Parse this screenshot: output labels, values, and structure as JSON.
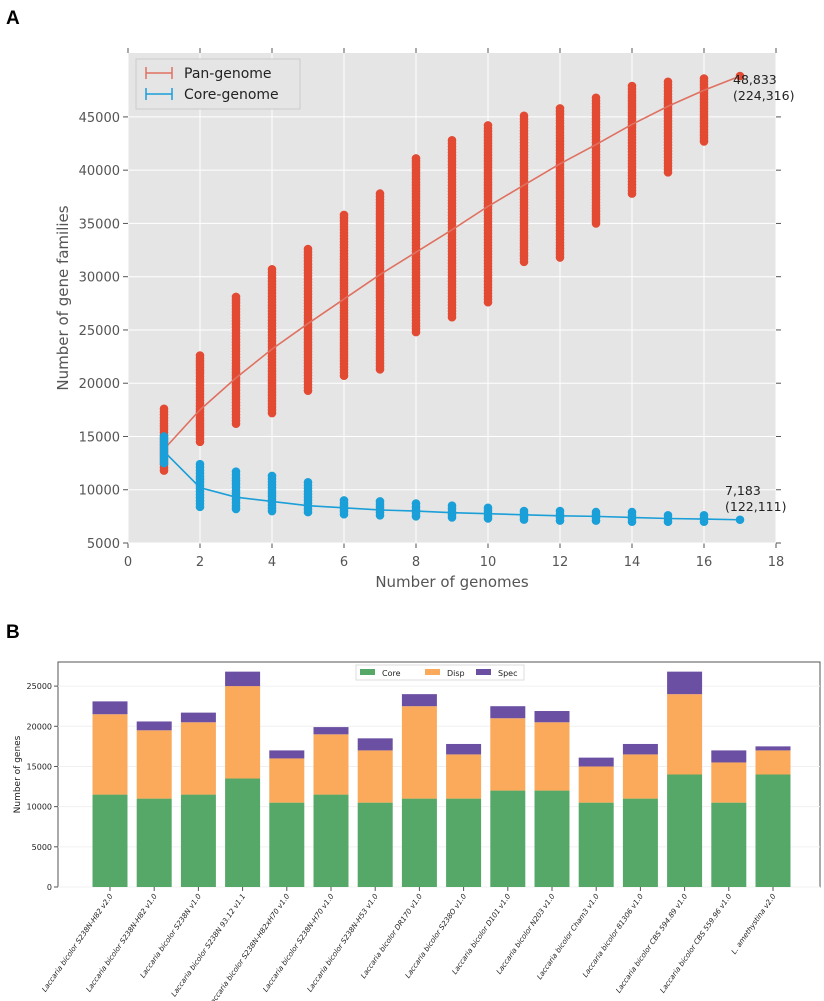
{
  "panels": {
    "a": "A",
    "b": "B"
  },
  "chart_data": [
    {
      "type": "scatter",
      "xlabel": "Number of genomes",
      "ylabel": "Number of gene families",
      "xlim": [
        0,
        18
      ],
      "ylim": [
        5000,
        51000
      ],
      "xticks": [
        0,
        2,
        4,
        6,
        8,
        10,
        12,
        14,
        16,
        18
      ],
      "yticks": [
        5000,
        10000,
        15000,
        20000,
        25000,
        30000,
        35000,
        40000,
        45000
      ],
      "grid": true,
      "legend_position": "top-left",
      "colors": {
        "pan": "#e24a33",
        "pan_line": "#e07060",
        "core": "#1a9fd8",
        "background": "#e5e5e5"
      },
      "series": [
        {
          "name": "Pan-genome",
          "x": [
            1,
            2,
            3,
            4,
            5,
            6,
            7,
            8,
            9,
            10,
            11,
            12,
            13,
            14,
            15,
            16,
            17
          ],
          "mean": [
            13800,
            17500,
            20500,
            23200,
            25600,
            27900,
            30200,
            32300,
            34400,
            36600,
            38600,
            40600,
            42400,
            44300,
            46000,
            47500,
            48833
          ],
          "scatter_min": [
            11800,
            14500,
            16200,
            17200,
            19300,
            20700,
            21300,
            24800,
            26200,
            27600,
            31400,
            31800,
            35000,
            37800,
            39800,
            42700,
            48833
          ],
          "scatter_max": [
            17600,
            22600,
            28100,
            30700,
            32600,
            35800,
            37800,
            41100,
            42800,
            44200,
            45100,
            45800,
            46800,
            47900,
            48300,
            48600,
            48833
          ],
          "annotation": [
            "48,833",
            "(224,316)"
          ]
        },
        {
          "name": "Core-genome",
          "x": [
            1,
            2,
            3,
            4,
            5,
            6,
            7,
            8,
            9,
            10,
            11,
            12,
            13,
            14,
            15,
            16,
            17
          ],
          "mean": [
            13600,
            10200,
            9300,
            8900,
            8500,
            8300,
            8100,
            8000,
            7850,
            7750,
            7650,
            7550,
            7500,
            7400,
            7300,
            7250,
            7183
          ],
          "scatter_min": [
            12500,
            8400,
            8200,
            8000,
            7900,
            7700,
            7600,
            7500,
            7400,
            7300,
            7200,
            7100,
            7100,
            7000,
            7000,
            7000,
            7183
          ],
          "scatter_max": [
            15000,
            12400,
            11700,
            11300,
            10700,
            9000,
            8900,
            8700,
            8500,
            8300,
            8000,
            8000,
            7900,
            7900,
            7600,
            7600,
            7183
          ],
          "annotation": [
            "7,183",
            "(122,111)"
          ]
        }
      ]
    },
    {
      "type": "bar",
      "stacked": true,
      "ylabel": "Number of genes",
      "ylim": [
        0,
        28000
      ],
      "yticks": [
        0,
        5000,
        10000,
        15000,
        20000,
        25000
      ],
      "legend_position": "top-center",
      "categories": [
        "Laccaria bicolor S238N-H82 v2.0",
        "Laccaria bicolor S238N-H82 v1.0",
        "Laccaria bicolor S238N v1.0",
        "Laccaria bicolor S238N 93.12 v1.1",
        "Laccaria bicolor S238N-H82xH70 v1.0",
        "Laccaria bicolor S238N-H70 v1.0",
        "Laccaria bicolor S238N-H53 v1.0",
        "Laccaria bicolor DR170 v1.0",
        "Laccaria bicolor S238O v1.0",
        "Laccaria bicolor D101 v1.0",
        "Laccaria bicolor N203 v1.0",
        "Laccaria bicolor Cham3 v1.0",
        "Laccaria bicolor 81306 v1.0",
        "Laccaria bicolor CBS 594.89 v1.0",
        "Laccaria bicolor CBS 559.96 v1.0",
        "L. amethystina v2.0"
      ],
      "series": [
        {
          "name": "Core",
          "color": "#55a868",
          "values": [
            11500,
            11000,
            11500,
            13500,
            10500,
            11500,
            10500,
            11000,
            11000,
            12000,
            12000,
            10500,
            11000,
            14000,
            10500,
            14000
          ]
        },
        {
          "name": "Disp",
          "color": "#fba95b",
          "values": [
            10000,
            8500,
            9000,
            11500,
            5500,
            7500,
            6500,
            11500,
            5500,
            9000,
            8500,
            4500,
            5500,
            10000,
            5000,
            3000
          ]
        },
        {
          "name": "Spec",
          "color": "#6a4fa3",
          "values": [
            1600,
            1100,
            1200,
            1800,
            1000,
            900,
            1500,
            1500,
            1300,
            1500,
            1400,
            1100,
            1300,
            2800,
            1500,
            500
          ]
        }
      ]
    }
  ]
}
